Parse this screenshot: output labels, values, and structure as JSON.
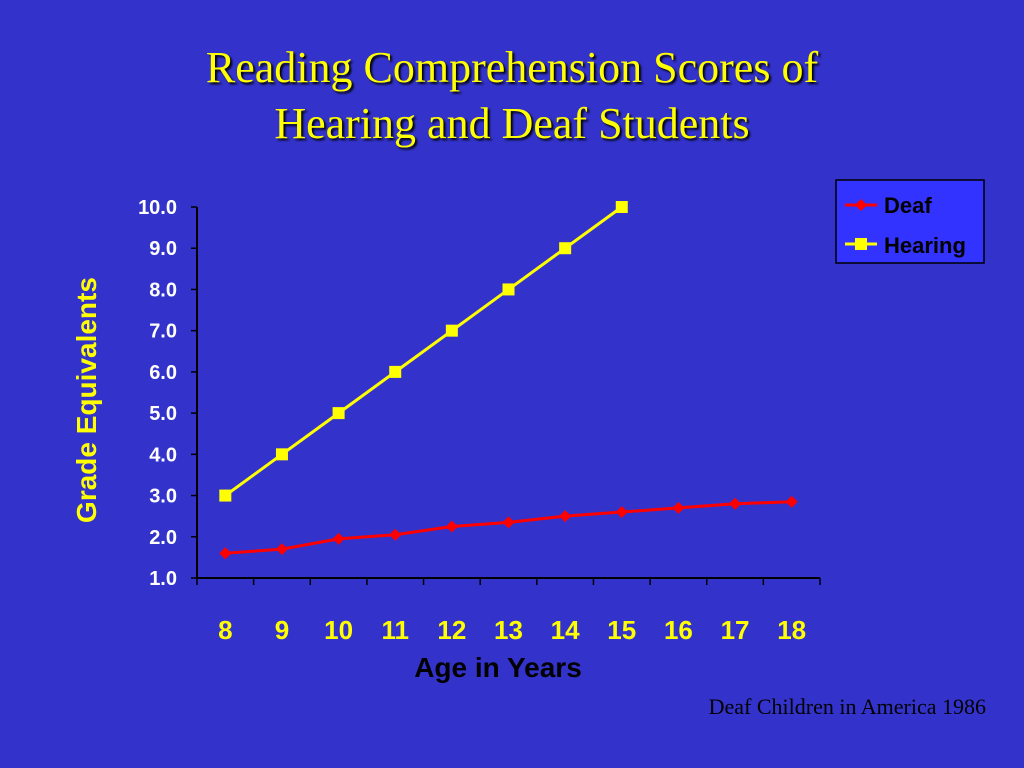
{
  "title": {
    "line1": "Reading Comprehension Scores of",
    "line2": "Hearing and Deaf Students"
  },
  "source_note": "Deaf Children in America 1986",
  "colors": {
    "background": "#3333cc",
    "title": "#ffff00",
    "deaf": "#ff0000",
    "hearing": "#ffff00",
    "legend_bg": "#3333ff"
  },
  "chart_data": {
    "type": "line",
    "xlabel": "Age in Years",
    "ylabel": "Grade Equivalents",
    "x": [
      8,
      9,
      10,
      11,
      12,
      13,
      14,
      15,
      16,
      17,
      18
    ],
    "x_tick_labels": [
      "8",
      "9",
      "10",
      "11",
      "12",
      "13",
      "14",
      "15",
      "16",
      "17",
      "18"
    ],
    "y_tick_labels": [
      "1.0",
      "2.0",
      "3.0",
      "4.0",
      "5.0",
      "6.0",
      "7.0",
      "8.0",
      "9.0",
      "10.0"
    ],
    "ylim": [
      1.0,
      10.0
    ],
    "grid": false,
    "legend_position": "top-right",
    "series": [
      {
        "name": "Deaf",
        "marker": "diamond",
        "color": "#ff0000",
        "values": [
          1.6,
          1.7,
          1.95,
          2.05,
          2.25,
          2.35,
          2.5,
          2.6,
          2.7,
          2.8,
          2.85
        ]
      },
      {
        "name": "Hearing",
        "marker": "square",
        "color": "#ffff00",
        "values": [
          3.0,
          4.0,
          5.0,
          6.0,
          7.0,
          8.0,
          9.0,
          10.0,
          null,
          null,
          null
        ]
      }
    ]
  }
}
